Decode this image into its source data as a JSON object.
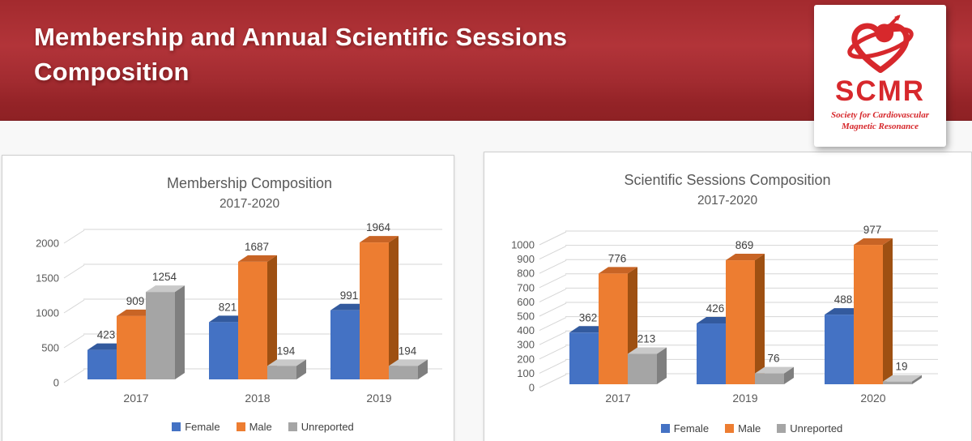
{
  "header": {
    "title_line1": "Membership and Annual Scientific Sessions",
    "title_line2": "Composition"
  },
  "logo": {
    "acronym": "SCMR",
    "subtitle_line1": "Society for Cardiovascular",
    "subtitle_line2": "Magnetic Resonance",
    "brand_color": "#D7282C"
  },
  "colors": {
    "header_red_top": "#A32A2E",
    "header_red_mid": "#B23439",
    "header_red_bottom": "#8E2124",
    "page_background": "#F8F8F8",
    "panel_border": "#CFCFCF",
    "gridline": "#D6D6D6",
    "axis_text": "#595959",
    "value_text": "#3F3F3F"
  },
  "chart_data": [
    {
      "type": "bar",
      "style": "3d-clustered",
      "title": "Membership Composition",
      "subtitle": "2017-2020",
      "categories": [
        "2017",
        "2018",
        "2019"
      ],
      "series": [
        {
          "name": "Female",
          "color": "#4472C4",
          "color_top": "#335A9E",
          "color_side": "#2B4C88",
          "values": [
            423,
            821,
            991
          ]
        },
        {
          "name": "Male",
          "color": "#ED7D31",
          "color_top": "#C86425",
          "color_side": "#9E5012",
          "values": [
            909,
            1687,
            1964
          ]
        },
        {
          "name": "Unreported",
          "color": "#A5A5A5",
          "color_top": "#C9C9C9",
          "color_side": "#7F7F7F",
          "values": [
            1254,
            194,
            194
          ]
        }
      ],
      "ylim": [
        0,
        2000
      ],
      "yticks": [
        0,
        500,
        1000,
        1500,
        2000
      ],
      "grid": true,
      "legend_position": "bottom",
      "xlabel": "",
      "ylabel": ""
    },
    {
      "type": "bar",
      "style": "3d-clustered",
      "title": "Scientific Sessions Composition",
      "subtitle": "2017-2020",
      "categories": [
        "2017",
        "2019",
        "2020"
      ],
      "series": [
        {
          "name": "Female",
          "color": "#4472C4",
          "color_top": "#335A9E",
          "color_side": "#2B4C88",
          "values": [
            362,
            426,
            488
          ]
        },
        {
          "name": "Male",
          "color": "#ED7D31",
          "color_top": "#C86425",
          "color_side": "#9E5012",
          "values": [
            776,
            869,
            977
          ]
        },
        {
          "name": "Unreported",
          "color": "#A5A5A5",
          "color_top": "#C9C9C9",
          "color_side": "#7F7F7F",
          "values": [
            213,
            76,
            19
          ]
        }
      ],
      "ylim": [
        0,
        1000
      ],
      "yticks": [
        0,
        100,
        200,
        300,
        400,
        500,
        600,
        700,
        800,
        900,
        1000
      ],
      "grid": true,
      "legend_position": "bottom",
      "xlabel": "",
      "ylabel": ""
    }
  ]
}
